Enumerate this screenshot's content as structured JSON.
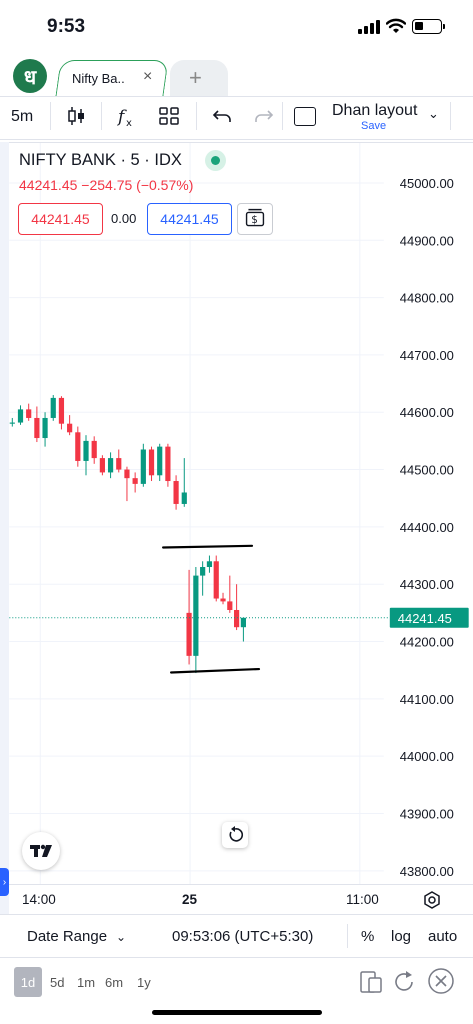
{
  "status_bar": {
    "time": "9:53"
  },
  "app": {
    "logo_glyph": "ध"
  },
  "tabs": [
    {
      "label": "Nifty Ba..",
      "close": "×"
    }
  ],
  "new_tab": "+",
  "toolbar": {
    "interval": "5m",
    "layout_name": "Dhan layout",
    "layout_save": "Save",
    "icons": [
      "candles-icon",
      "indicators-icon",
      "templates-icon",
      "undo-icon",
      "redo-icon",
      "layout-icon",
      "chevron-down-icon"
    ]
  },
  "symbol": {
    "title": "NIFTY BANK · 5 · IDX",
    "quote": "44241.45  −254.75 (−0.57%)",
    "bid": "44241.45",
    "spread": "0.00",
    "ask": "44241.45",
    "colors": {
      "down": "#f23645",
      "up": "#089981",
      "accent": "#2962ff"
    }
  },
  "chart_data": {
    "type": "candlestick",
    "ylim": [
      43770,
      45050
    ],
    "y_ticks": [
      "45000.00",
      "44900.00",
      "44800.00",
      "44700.00",
      "44600.00",
      "44500.00",
      "44400.00",
      "44300.00",
      "44200.00",
      "44100.00",
      "44000.00",
      "43900.00",
      "43800.00"
    ],
    "x_ticks": [
      "14:00",
      "25",
      "11:00"
    ],
    "last_price": "44241.45",
    "candles_day1": [
      [
        44580,
        44590,
        44575,
        44582
      ],
      [
        44582,
        44612,
        44578,
        44605
      ],
      [
        44605,
        44615,
        44585,
        44590
      ],
      [
        44590,
        44610,
        44548,
        44555
      ],
      [
        44555,
        44600,
        44540,
        44590
      ],
      [
        44590,
        44630,
        44585,
        44625
      ],
      [
        44625,
        44628,
        44570,
        44580
      ],
      [
        44580,
        44595,
        44560,
        44565
      ],
      [
        44565,
        44575,
        44505,
        44515
      ],
      [
        44515,
        44560,
        44490,
        44550
      ],
      [
        44550,
        44558,
        44510,
        44520
      ],
      [
        44520,
        44525,
        44490,
        44495
      ],
      [
        44495,
        44530,
        44485,
        44520
      ],
      [
        44520,
        44535,
        44495,
        44500
      ],
      [
        44500,
        44505,
        44445,
        44485
      ],
      [
        44485,
        44495,
        44460,
        44475
      ],
      [
        44475,
        44545,
        44470,
        44535
      ],
      [
        44535,
        44540,
        44480,
        44490
      ],
      [
        44490,
        44545,
        44480,
        44540
      ],
      [
        44540,
        44545,
        44470,
        44480
      ],
      [
        44480,
        44490,
        44430,
        44440
      ],
      [
        44440,
        44520,
        44435,
        44460
      ]
    ],
    "candles_day2": [
      [
        44250,
        44325,
        44160,
        44175
      ],
      [
        44175,
        44330,
        44145,
        44315
      ],
      [
        44315,
        44340,
        44280,
        44330
      ],
      [
        44330,
        44350,
        44320,
        44340
      ],
      [
        44340,
        44350,
        44270,
        44275
      ],
      [
        44275,
        44285,
        44265,
        44270
      ],
      [
        44270,
        44315,
        44250,
        44255
      ],
      [
        44255,
        44300,
        44220,
        44225
      ],
      [
        44225,
        44240,
        44200,
        44241.45
      ]
    ],
    "drawings": [
      {
        "from": [
          44364,
          0
        ],
        "to": [
          44367,
          1
        ]
      },
      {
        "from": [
          44146,
          0
        ],
        "to": [
          44152,
          1
        ]
      }
    ]
  },
  "time_axis": {
    "labels": [
      "14:00",
      "25",
      "11:00"
    ]
  },
  "bottom_bar": {
    "date_range": "Date Range",
    "clock": "09:53:06 (UTC+5:30)",
    "percent": "%",
    "log": "log",
    "auto": "auto"
  },
  "ranges": {
    "active": "1d",
    "items": [
      "5d",
      "1m",
      "6m",
      "1y"
    ]
  }
}
